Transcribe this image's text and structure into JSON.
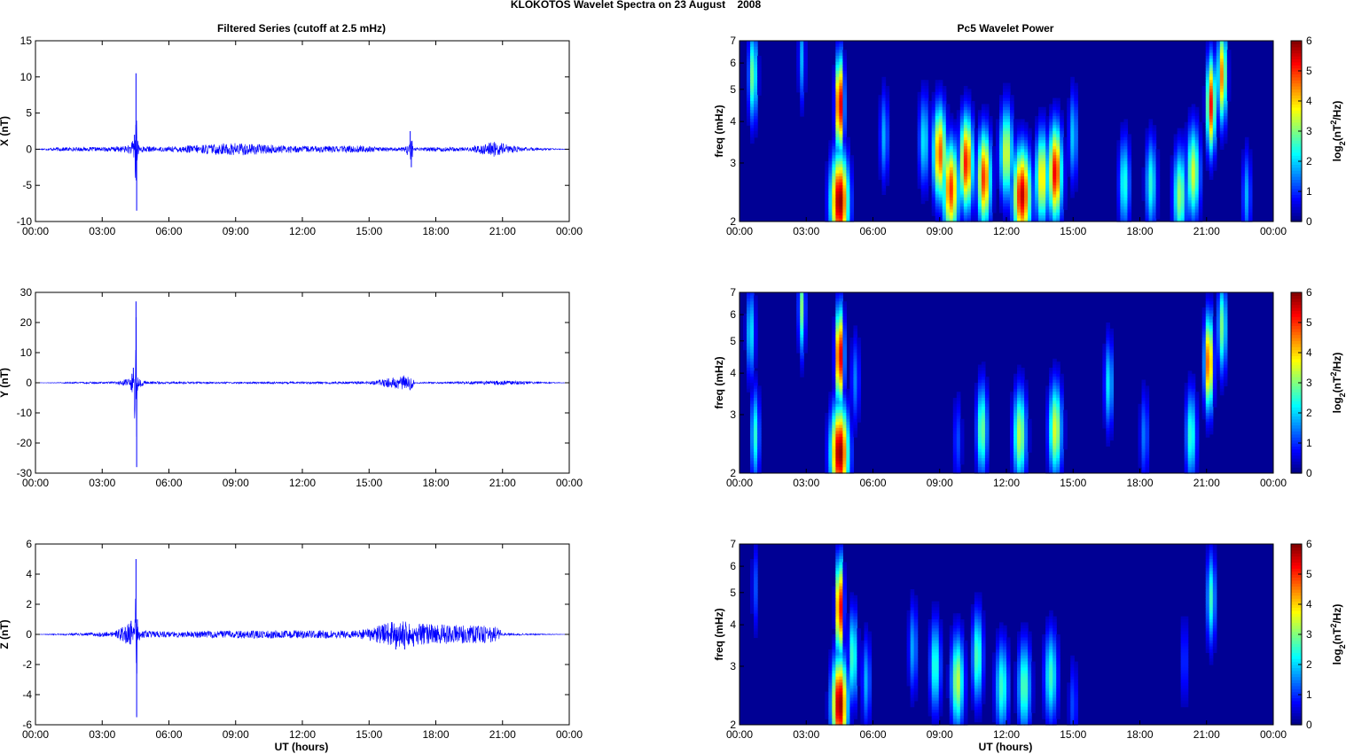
{
  "figure": {
    "suptitle": "KLOKOTOS Wavelet Spectra on 23 August    2008",
    "left_title": "Filtered Series (cutoff at 2.5 mHz)",
    "right_title": "Pc5 Wavelet Power",
    "xlabel": "UT (hours)"
  },
  "colors": {
    "trace": "#0000ff",
    "background": "#00008f",
    "axis": "#000000"
  },
  "chart_data": [
    {
      "type": "line",
      "name": "X filtered series",
      "ylabel": "X (nT)",
      "xlim": [
        0,
        24
      ],
      "ylim": [
        -10,
        15
      ],
      "yticks": [
        -10,
        -5,
        0,
        5,
        10,
        15
      ],
      "xticks": [
        "00:00",
        "03:00",
        "06:00",
        "09:00",
        "12:00",
        "15:00",
        "18:00",
        "21:00",
        "00:00"
      ],
      "series": [
        {
          "x": [
            0,
            1.0,
            2.0,
            3.0,
            4.0,
            4.3,
            4.45,
            4.52,
            4.55,
            4.58,
            4.65,
            4.8,
            5.5,
            7.0,
            8.0,
            9.0,
            10.0,
            11.0,
            12.0,
            13.5,
            14.6,
            15.5,
            16.6,
            16.85,
            16.9,
            17.0,
            18.0,
            19.5,
            20.7,
            21.2,
            22.0,
            24
          ],
          "values": [
            0,
            0.3,
            -0.3,
            0.3,
            -0.5,
            0.8,
            2.0,
            10.5,
            -8.5,
            1.5,
            -1.0,
            0.5,
            0.3,
            0.6,
            -0.8,
            1.0,
            -0.8,
            0.6,
            0.5,
            -0.5,
            0.6,
            0.3,
            0.3,
            2.5,
            -2.5,
            0.2,
            0.4,
            0.3,
            1.3,
            -0.7,
            0.3,
            0
          ]
        }
      ]
    },
    {
      "type": "line",
      "name": "Y filtered series",
      "ylabel": "Y (nT)",
      "xlim": [
        0,
        24
      ],
      "ylim": [
        -30,
        30
      ],
      "yticks": [
        -30,
        -20,
        -10,
        0,
        10,
        20,
        30
      ],
      "xticks": [
        "00:00",
        "03:00",
        "06:00",
        "09:00",
        "12:00",
        "15:00",
        "18:00",
        "21:00",
        "00:00"
      ],
      "series": [
        {
          "x": [
            0,
            2.0,
            3.5,
            4.2,
            4.4,
            4.52,
            4.55,
            4.58,
            4.7,
            5.0,
            8.0,
            12.0,
            15.0,
            16.8,
            16.95,
            17.05,
            18.0,
            21.0,
            24
          ],
          "values": [
            0,
            0.3,
            0.4,
            1.5,
            5.0,
            27,
            -28,
            3.0,
            -1.5,
            0.5,
            0.3,
            0.4,
            0.5,
            3.0,
            -2.0,
            0.3,
            0.3,
            -0.8,
            0
          ]
        }
      ]
    },
    {
      "type": "line",
      "name": "Z filtered series",
      "ylabel": "Z (nT)",
      "xlim": [
        0,
        24
      ],
      "ylim": [
        -6,
        6
      ],
      "yticks": [
        -6,
        -4,
        -2,
        0,
        2,
        4,
        6
      ],
      "xticks": [
        "00:00",
        "03:00",
        "06:00",
        "09:00",
        "12:00",
        "15:00",
        "18:00",
        "21:00",
        "00:00"
      ],
      "xlabel": "UT (hours)",
      "series": [
        {
          "x": [
            0,
            2.0,
            3.5,
            4.3,
            4.45,
            4.52,
            4.55,
            4.58,
            4.7,
            6.0,
            9.0,
            11.0,
            14.5,
            16.2,
            16.6,
            17.0,
            20.8,
            21.0,
            24
          ],
          "values": [
            0,
            0.1,
            -0.2,
            0.9,
            -0.4,
            5.0,
            -5.5,
            1.0,
            -0.3,
            0.2,
            -0.3,
            0.3,
            0.3,
            -1.0,
            -1.0,
            -0.8,
            0.6,
            0.1,
            0
          ]
        }
      ]
    },
    {
      "type": "heatmap",
      "name": "X wavelet power",
      "ylabel": "freq (mHz)",
      "colorbar_label": "log2(nT2/Hz)",
      "colorbar_range": [
        0,
        6
      ],
      "colorbar_ticks": [
        0,
        1,
        2,
        3,
        4,
        5,
        6
      ],
      "xlim": [
        0,
        24
      ],
      "ylim": [
        2,
        7
      ],
      "yticks": [
        2,
        3,
        4,
        5,
        6,
        7
      ],
      "xticks": [
        "00:00",
        "03:00",
        "06:00",
        "09:00",
        "12:00",
        "15:00",
        "18:00",
        "21:00",
        "00:00"
      ],
      "colormap": "jet",
      "blobs": [
        {
          "t": 4.5,
          "f": 4.5,
          "power": 6.0,
          "spread": 0.18
        },
        {
          "t": 4.5,
          "f": 2.3,
          "power": 6.0,
          "spread": 0.4
        },
        {
          "t": 0.6,
          "f": 5.5,
          "power": 3.0,
          "spread": 0.2
        },
        {
          "t": 2.8,
          "f": 6.2,
          "power": 1.8,
          "spread": 0.15
        },
        {
          "t": 6.5,
          "f": 3.6,
          "power": 1.8,
          "spread": 0.2
        },
        {
          "t": 8.3,
          "f": 3.5,
          "power": 2.2,
          "spread": 0.25
        },
        {
          "t": 9.0,
          "f": 3.2,
          "power": 4.8,
          "spread": 0.3
        },
        {
          "t": 9.5,
          "f": 2.5,
          "power": 5.0,
          "spread": 0.35
        },
        {
          "t": 10.2,
          "f": 3.0,
          "power": 5.2,
          "spread": 0.3
        },
        {
          "t": 11.0,
          "f": 2.7,
          "power": 5.0,
          "spread": 0.3
        },
        {
          "t": 12.0,
          "f": 3.2,
          "power": 3.6,
          "spread": 0.3
        },
        {
          "t": 12.7,
          "f": 2.4,
          "power": 5.6,
          "spread": 0.4
        },
        {
          "t": 13.6,
          "f": 2.7,
          "power": 4.0,
          "spread": 0.3
        },
        {
          "t": 14.2,
          "f": 2.8,
          "power": 5.4,
          "spread": 0.3
        },
        {
          "t": 15.0,
          "f": 3.6,
          "power": 2.0,
          "spread": 0.2
        },
        {
          "t": 17.3,
          "f": 2.6,
          "power": 2.5,
          "spread": 0.25
        },
        {
          "t": 18.5,
          "f": 2.6,
          "power": 2.5,
          "spread": 0.25
        },
        {
          "t": 19.8,
          "f": 2.4,
          "power": 3.2,
          "spread": 0.3
        },
        {
          "t": 20.4,
          "f": 2.8,
          "power": 3.5,
          "spread": 0.3
        },
        {
          "t": 21.2,
          "f": 4.5,
          "power": 5.2,
          "spread": 0.2
        },
        {
          "t": 21.7,
          "f": 5.5,
          "power": 4.5,
          "spread": 0.2
        },
        {
          "t": 22.8,
          "f": 2.4,
          "power": 1.8,
          "spread": 0.2
        }
      ]
    },
    {
      "type": "heatmap",
      "name": "Y wavelet power",
      "ylabel": "freq (mHz)",
      "colorbar_label": "log2(nT2/Hz)",
      "colorbar_range": [
        0,
        6
      ],
      "colorbar_ticks": [
        0,
        1,
        2,
        3,
        4,
        5,
        6
      ],
      "xlim": [
        0,
        24
      ],
      "ylim": [
        2,
        7
      ],
      "yticks": [
        2,
        3,
        4,
        5,
        6,
        7
      ],
      "xticks": [
        "00:00",
        "03:00",
        "06:00",
        "09:00",
        "12:00",
        "15:00",
        "18:00",
        "21:00",
        "00:00"
      ],
      "colormap": "jet",
      "blobs": [
        {
          "t": 4.5,
          "f": 4.5,
          "power": 6.0,
          "spread": 0.18
        },
        {
          "t": 4.5,
          "f": 2.3,
          "power": 6.0,
          "spread": 0.4
        },
        {
          "t": 0.5,
          "f": 5.3,
          "power": 2.2,
          "spread": 0.2
        },
        {
          "t": 0.7,
          "f": 2.6,
          "power": 2.5,
          "spread": 0.2
        },
        {
          "t": 2.8,
          "f": 6.3,
          "power": 3.0,
          "spread": 0.15
        },
        {
          "t": 5.2,
          "f": 3.8,
          "power": 1.5,
          "spread": 0.2
        },
        {
          "t": 9.8,
          "f": 2.5,
          "power": 1.2,
          "spread": 0.2
        },
        {
          "t": 10.9,
          "f": 2.7,
          "power": 3.0,
          "spread": 0.25
        },
        {
          "t": 12.6,
          "f": 2.6,
          "power": 3.4,
          "spread": 0.3
        },
        {
          "t": 14.2,
          "f": 2.7,
          "power": 3.6,
          "spread": 0.3
        },
        {
          "t": 16.6,
          "f": 3.7,
          "power": 2.2,
          "spread": 0.2
        },
        {
          "t": 18.2,
          "f": 2.6,
          "power": 1.5,
          "spread": 0.2
        },
        {
          "t": 20.3,
          "f": 2.6,
          "power": 2.6,
          "spread": 0.25
        },
        {
          "t": 21.1,
          "f": 4.3,
          "power": 5.0,
          "spread": 0.2
        },
        {
          "t": 21.7,
          "f": 5.5,
          "power": 3.0,
          "spread": 0.2
        }
      ]
    },
    {
      "type": "heatmap",
      "name": "Z wavelet power",
      "ylabel": "freq (mHz)",
      "xlabel": "UT (hours)",
      "colorbar_label": "log2(nT2/Hz)",
      "colorbar_range": [
        0,
        6
      ],
      "colorbar_ticks": [
        0,
        1,
        2,
        3,
        4,
        5,
        6
      ],
      "xlim": [
        0,
        24
      ],
      "ylim": [
        2,
        7
      ],
      "yticks": [
        2,
        3,
        4,
        5,
        6,
        7
      ],
      "xticks": [
        "00:00",
        "03:00",
        "06:00",
        "09:00",
        "12:00",
        "15:00",
        "18:00",
        "21:00",
        "00:00"
      ],
      "colormap": "jet",
      "blobs": [
        {
          "t": 4.5,
          "f": 4.5,
          "power": 6.0,
          "spread": 0.16
        },
        {
          "t": 4.5,
          "f": 2.3,
          "power": 6.0,
          "spread": 0.35
        },
        {
          "t": 0.7,
          "f": 5.2,
          "power": 1.2,
          "spread": 0.15
        },
        {
          "t": 5.1,
          "f": 3.2,
          "power": 2.8,
          "spread": 0.2
        },
        {
          "t": 5.7,
          "f": 2.7,
          "power": 1.8,
          "spread": 0.2
        },
        {
          "t": 7.8,
          "f": 3.4,
          "power": 1.8,
          "spread": 0.2
        },
        {
          "t": 8.8,
          "f": 3.0,
          "power": 2.6,
          "spread": 0.25
        },
        {
          "t": 9.8,
          "f": 2.7,
          "power": 3.4,
          "spread": 0.3
        },
        {
          "t": 10.7,
          "f": 3.2,
          "power": 2.8,
          "spread": 0.25
        },
        {
          "t": 11.8,
          "f": 2.6,
          "power": 2.6,
          "spread": 0.3
        },
        {
          "t": 12.8,
          "f": 2.6,
          "power": 2.8,
          "spread": 0.3
        },
        {
          "t": 14.0,
          "f": 2.8,
          "power": 2.6,
          "spread": 0.3
        },
        {
          "t": 15.0,
          "f": 2.3,
          "power": 1.2,
          "spread": 0.2
        },
        {
          "t": 20.0,
          "f": 3.1,
          "power": 1.2,
          "spread": 0.15
        },
        {
          "t": 21.2,
          "f": 4.8,
          "power": 2.6,
          "spread": 0.2
        }
      ]
    }
  ]
}
